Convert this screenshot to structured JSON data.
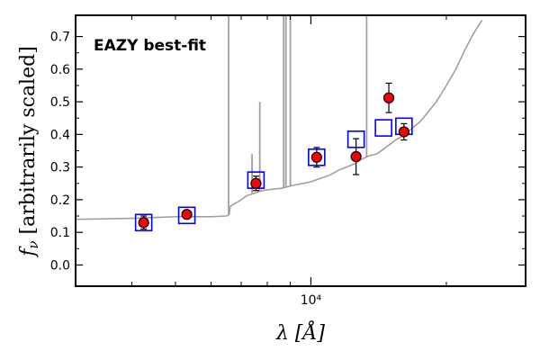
{
  "chart_data": {
    "type": "scatter",
    "annotation": "EAZY best-fit",
    "annotation_color": "#ff0000",
    "xlabel": "λ [Å]",
    "ylabel": "fν [arbitrarily scaled]",
    "xscale": "log",
    "xlim": [
      3000,
      30000
    ],
    "ylim": [
      -0.065,
      0.765
    ],
    "yticks": [
      0.0,
      0.1,
      0.2,
      0.3,
      0.4,
      0.5,
      0.6,
      0.7
    ],
    "ytick_labels": [
      "0.0",
      "0.1",
      "0.2",
      "0.3",
      "0.4",
      "0.5",
      "0.6",
      "0.7"
    ],
    "xtick_labels": [
      {
        "value": 10000,
        "label": "10⁴"
      }
    ],
    "grid": false,
    "series": [
      {
        "kind": "line",
        "color": "#a0a0a0",
        "x": [
          3000,
          4000,
          5000,
          6000,
          6500,
          6580,
          6620,
          7000,
          7200,
          7500,
          7800,
          8200,
          8600,
          8900,
          9200,
          9600,
          10000,
          10500,
          11000,
          11500,
          12000,
          12500,
          13000,
          13500,
          14000,
          14500,
          15000,
          15500,
          16000,
          16500,
          17000,
          17500,
          18000,
          19000,
          20000,
          21000,
          22000,
          23000,
          24000
        ],
        "y": [
          0.14,
          0.143,
          0.148,
          0.148,
          0.15,
          0.155,
          0.18,
          0.2,
          0.212,
          0.22,
          0.228,
          0.232,
          0.235,
          0.24,
          0.245,
          0.25,
          0.255,
          0.265,
          0.275,
          0.29,
          0.3,
          0.31,
          0.325,
          0.335,
          0.34,
          0.355,
          0.37,
          0.385,
          0.395,
          0.41,
          0.425,
          0.44,
          0.46,
          0.5,
          0.55,
          0.6,
          0.66,
          0.71,
          0.75
        ],
        "emission_lines": [
          {
            "x": 6563,
            "peak": 0.77
          },
          {
            "x": 7400,
            "peak": 0.34
          },
          {
            "x": 7700,
            "peak": 0.5
          },
          {
            "x": 8700,
            "peak": 0.77
          },
          {
            "x": 8800,
            "peak": 0.77
          },
          {
            "x": 9000,
            "peak": 0.77
          },
          {
            "x": 13300,
            "peak": 0.77
          }
        ]
      },
      {
        "kind": "model-photometry",
        "marker": "open-square",
        "color": "#0000ff",
        "x": [
          4250,
          5300,
          7550,
          10300,
          12600,
          14500,
          16100
        ],
        "y": [
          0.13,
          0.152,
          0.26,
          0.33,
          0.385,
          0.42,
          0.425
        ]
      },
      {
        "kind": "observed-photometry",
        "marker": "filled-circle",
        "color": "#ff0000",
        "edge_color": "#000000",
        "x": [
          4250,
          5300,
          7550,
          10300,
          12600,
          14900,
          16100
        ],
        "y": [
          0.13,
          0.155,
          0.25,
          0.33,
          0.332,
          0.512,
          0.408
        ],
        "yerr": [
          0.02,
          0.006,
          0.022,
          0.03,
          0.055,
          0.045,
          0.025
        ]
      }
    ]
  }
}
